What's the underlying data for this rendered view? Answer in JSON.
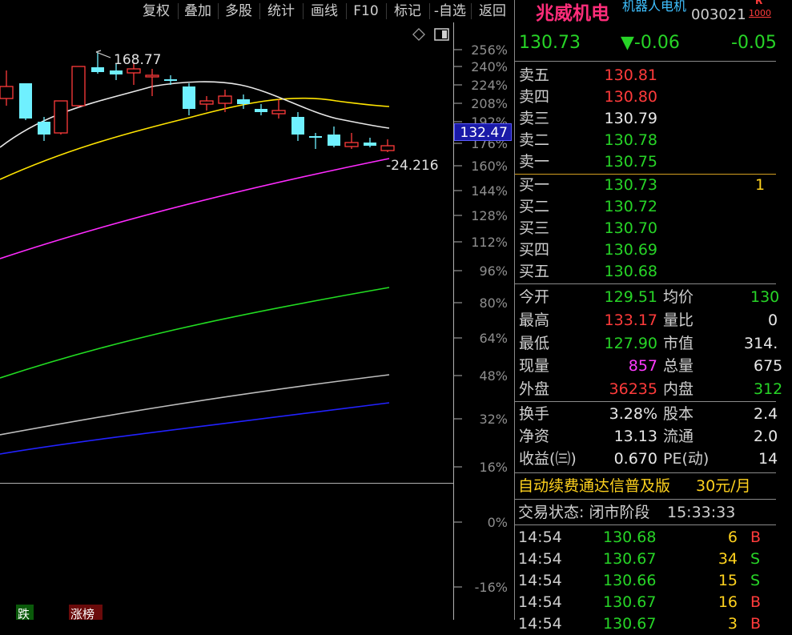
{
  "toolbar": {
    "buttons": [
      "复权",
      "叠加",
      "多股",
      "统计",
      "画线",
      "F10",
      "标记",
      "-自选",
      "返回"
    ]
  },
  "chart": {
    "annot_high": "168.77",
    "annot_low": "-24.216",
    "current_price_tag": "132.47",
    "y_axis_labels": [
      "256%",
      "240%",
      "224%",
      "208%",
      "192%",
      "176%",
      "160%",
      "144%",
      "128%",
      "112%",
      "96%",
      "80%",
      "64%",
      "48%",
      "32%",
      "16%",
      "0%",
      "-16%"
    ],
    "icons": [
      "diamond-icon",
      "window-icon"
    ],
    "bottom_badges": [
      "跌",
      "涨榜"
    ]
  },
  "stock": {
    "name": "兆威机电",
    "concept": "机器人电机",
    "code": "003021",
    "badge_top": "R",
    "badge_bottom": "1000",
    "price": "130.73",
    "change": "▼-0.06",
    "change_pct": "-0.05"
  },
  "order_book": {
    "asks": [
      {
        "label": "卖五",
        "price": "130.81"
      },
      {
        "label": "卖四",
        "price": "130.80"
      },
      {
        "label": "卖三",
        "price": "130.79"
      },
      {
        "label": "卖二",
        "price": "130.78"
      },
      {
        "label": "卖一",
        "price": "130.75"
      }
    ],
    "bids": [
      {
        "label": "买一",
        "price": "130.73",
        "vol": "1"
      },
      {
        "label": "买二",
        "price": "130.72"
      },
      {
        "label": "买三",
        "price": "130.70"
      },
      {
        "label": "买四",
        "price": "130.69"
      },
      {
        "label": "买五",
        "price": "130.68"
      }
    ]
  },
  "stats": {
    "left": [
      {
        "label": "今开",
        "value": "129.51"
      },
      {
        "label": "最高",
        "value": "133.17"
      },
      {
        "label": "最低",
        "value": "127.90"
      },
      {
        "label": "现量",
        "value": "857"
      },
      {
        "label": "外盘",
        "value": "36235"
      }
    ],
    "right": [
      {
        "label": "均价",
        "value": "130"
      },
      {
        "label": "量比",
        "value": "0"
      },
      {
        "label": "市值",
        "value": "314."
      },
      {
        "label": "总量",
        "value": "675"
      },
      {
        "label": "内盘",
        "value": "312"
      }
    ]
  },
  "fin": {
    "left": [
      {
        "label": "换手",
        "value": "3.28%"
      },
      {
        "label": "净资",
        "value": "13.13"
      },
      {
        "label": "收益(㈢)",
        "value": "0.670"
      }
    ],
    "right": [
      {
        "label": "股本",
        "value": "2.4"
      },
      {
        "label": "流通",
        "value": "2.0"
      },
      {
        "label": "PE(动)",
        "value": "14"
      }
    ]
  },
  "promo": {
    "text": "自动续费通达信普及版",
    "price": "30元/月"
  },
  "trade_status": {
    "label": "交易状态: 闭市阶段",
    "time": "15:33:33"
  },
  "ticks": [
    {
      "time": "14:54",
      "price": "130.68",
      "vol": "6",
      "side": "B"
    },
    {
      "time": "14:54",
      "price": "130.67",
      "vol": "34",
      "side": "S"
    },
    {
      "time": "14:54",
      "price": "130.66",
      "vol": "15",
      "side": "S"
    },
    {
      "time": "14:54",
      "price": "130.67",
      "vol": "16",
      "side": "B"
    },
    {
      "time": "14:54",
      "price": "130.67",
      "vol": "3",
      "side": "B"
    }
  ],
  "colors": {
    "up": "#ff3b3b",
    "down": "#27d427",
    "accent": "#ff2d7a",
    "ma_white": "#e8e8e8",
    "ma_yellow": "#ffe400",
    "ma_magenta": "#ff2bff",
    "ma_green": "#22dd22",
    "ma_gray": "#bdbdbd",
    "ma_blue": "#2222ff"
  }
}
